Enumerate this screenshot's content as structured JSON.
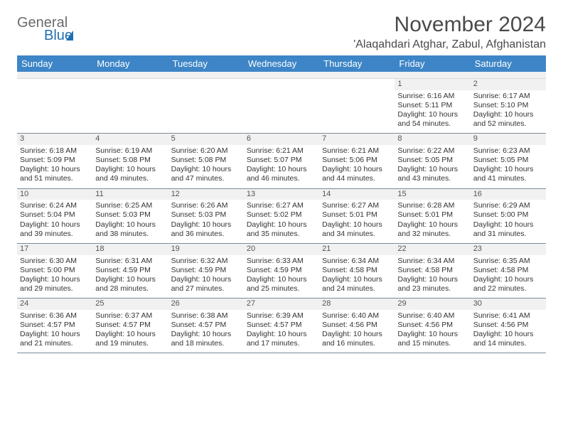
{
  "brand": {
    "word1": "General",
    "word2": "Blue"
  },
  "title": "November 2024",
  "location": "'Alaqahdari Atghar, Zabul, Afghanistan",
  "colors": {
    "header_bg": "#3d85c6",
    "header_text": "#ffffff",
    "daynum_bg": "#f1f1f1",
    "row_border": "#7a8a99",
    "body_text": "#333333",
    "title_text": "#4a4a4a",
    "brand_gray": "#6b6b6b",
    "brand_blue": "#1f6fb2"
  },
  "dayNames": [
    "Sunday",
    "Monday",
    "Tuesday",
    "Wednesday",
    "Thursday",
    "Friday",
    "Saturday"
  ],
  "weeks": [
    [
      {
        "n": "",
        "sr": "",
        "ss": "",
        "dl": ""
      },
      {
        "n": "",
        "sr": "",
        "ss": "",
        "dl": ""
      },
      {
        "n": "",
        "sr": "",
        "ss": "",
        "dl": ""
      },
      {
        "n": "",
        "sr": "",
        "ss": "",
        "dl": ""
      },
      {
        "n": "",
        "sr": "",
        "ss": "",
        "dl": ""
      },
      {
        "n": "1",
        "sr": "Sunrise: 6:16 AM",
        "ss": "Sunset: 5:11 PM",
        "dl": "Daylight: 10 hours and 54 minutes."
      },
      {
        "n": "2",
        "sr": "Sunrise: 6:17 AM",
        "ss": "Sunset: 5:10 PM",
        "dl": "Daylight: 10 hours and 52 minutes."
      }
    ],
    [
      {
        "n": "3",
        "sr": "Sunrise: 6:18 AM",
        "ss": "Sunset: 5:09 PM",
        "dl": "Daylight: 10 hours and 51 minutes."
      },
      {
        "n": "4",
        "sr": "Sunrise: 6:19 AM",
        "ss": "Sunset: 5:08 PM",
        "dl": "Daylight: 10 hours and 49 minutes."
      },
      {
        "n": "5",
        "sr": "Sunrise: 6:20 AM",
        "ss": "Sunset: 5:08 PM",
        "dl": "Daylight: 10 hours and 47 minutes."
      },
      {
        "n": "6",
        "sr": "Sunrise: 6:21 AM",
        "ss": "Sunset: 5:07 PM",
        "dl": "Daylight: 10 hours and 46 minutes."
      },
      {
        "n": "7",
        "sr": "Sunrise: 6:21 AM",
        "ss": "Sunset: 5:06 PM",
        "dl": "Daylight: 10 hours and 44 minutes."
      },
      {
        "n": "8",
        "sr": "Sunrise: 6:22 AM",
        "ss": "Sunset: 5:05 PM",
        "dl": "Daylight: 10 hours and 43 minutes."
      },
      {
        "n": "9",
        "sr": "Sunrise: 6:23 AM",
        "ss": "Sunset: 5:05 PM",
        "dl": "Daylight: 10 hours and 41 minutes."
      }
    ],
    [
      {
        "n": "10",
        "sr": "Sunrise: 6:24 AM",
        "ss": "Sunset: 5:04 PM",
        "dl": "Daylight: 10 hours and 39 minutes."
      },
      {
        "n": "11",
        "sr": "Sunrise: 6:25 AM",
        "ss": "Sunset: 5:03 PM",
        "dl": "Daylight: 10 hours and 38 minutes."
      },
      {
        "n": "12",
        "sr": "Sunrise: 6:26 AM",
        "ss": "Sunset: 5:03 PM",
        "dl": "Daylight: 10 hours and 36 minutes."
      },
      {
        "n": "13",
        "sr": "Sunrise: 6:27 AM",
        "ss": "Sunset: 5:02 PM",
        "dl": "Daylight: 10 hours and 35 minutes."
      },
      {
        "n": "14",
        "sr": "Sunrise: 6:27 AM",
        "ss": "Sunset: 5:01 PM",
        "dl": "Daylight: 10 hours and 34 minutes."
      },
      {
        "n": "15",
        "sr": "Sunrise: 6:28 AM",
        "ss": "Sunset: 5:01 PM",
        "dl": "Daylight: 10 hours and 32 minutes."
      },
      {
        "n": "16",
        "sr": "Sunrise: 6:29 AM",
        "ss": "Sunset: 5:00 PM",
        "dl": "Daylight: 10 hours and 31 minutes."
      }
    ],
    [
      {
        "n": "17",
        "sr": "Sunrise: 6:30 AM",
        "ss": "Sunset: 5:00 PM",
        "dl": "Daylight: 10 hours and 29 minutes."
      },
      {
        "n": "18",
        "sr": "Sunrise: 6:31 AM",
        "ss": "Sunset: 4:59 PM",
        "dl": "Daylight: 10 hours and 28 minutes."
      },
      {
        "n": "19",
        "sr": "Sunrise: 6:32 AM",
        "ss": "Sunset: 4:59 PM",
        "dl": "Daylight: 10 hours and 27 minutes."
      },
      {
        "n": "20",
        "sr": "Sunrise: 6:33 AM",
        "ss": "Sunset: 4:59 PM",
        "dl": "Daylight: 10 hours and 25 minutes."
      },
      {
        "n": "21",
        "sr": "Sunrise: 6:34 AM",
        "ss": "Sunset: 4:58 PM",
        "dl": "Daylight: 10 hours and 24 minutes."
      },
      {
        "n": "22",
        "sr": "Sunrise: 6:34 AM",
        "ss": "Sunset: 4:58 PM",
        "dl": "Daylight: 10 hours and 23 minutes."
      },
      {
        "n": "23",
        "sr": "Sunrise: 6:35 AM",
        "ss": "Sunset: 4:58 PM",
        "dl": "Daylight: 10 hours and 22 minutes."
      }
    ],
    [
      {
        "n": "24",
        "sr": "Sunrise: 6:36 AM",
        "ss": "Sunset: 4:57 PM",
        "dl": "Daylight: 10 hours and 21 minutes."
      },
      {
        "n": "25",
        "sr": "Sunrise: 6:37 AM",
        "ss": "Sunset: 4:57 PM",
        "dl": "Daylight: 10 hours and 19 minutes."
      },
      {
        "n": "26",
        "sr": "Sunrise: 6:38 AM",
        "ss": "Sunset: 4:57 PM",
        "dl": "Daylight: 10 hours and 18 minutes."
      },
      {
        "n": "27",
        "sr": "Sunrise: 6:39 AM",
        "ss": "Sunset: 4:57 PM",
        "dl": "Daylight: 10 hours and 17 minutes."
      },
      {
        "n": "28",
        "sr": "Sunrise: 6:40 AM",
        "ss": "Sunset: 4:56 PM",
        "dl": "Daylight: 10 hours and 16 minutes."
      },
      {
        "n": "29",
        "sr": "Sunrise: 6:40 AM",
        "ss": "Sunset: 4:56 PM",
        "dl": "Daylight: 10 hours and 15 minutes."
      },
      {
        "n": "30",
        "sr": "Sunrise: 6:41 AM",
        "ss": "Sunset: 4:56 PM",
        "dl": "Daylight: 10 hours and 14 minutes."
      }
    ]
  ]
}
